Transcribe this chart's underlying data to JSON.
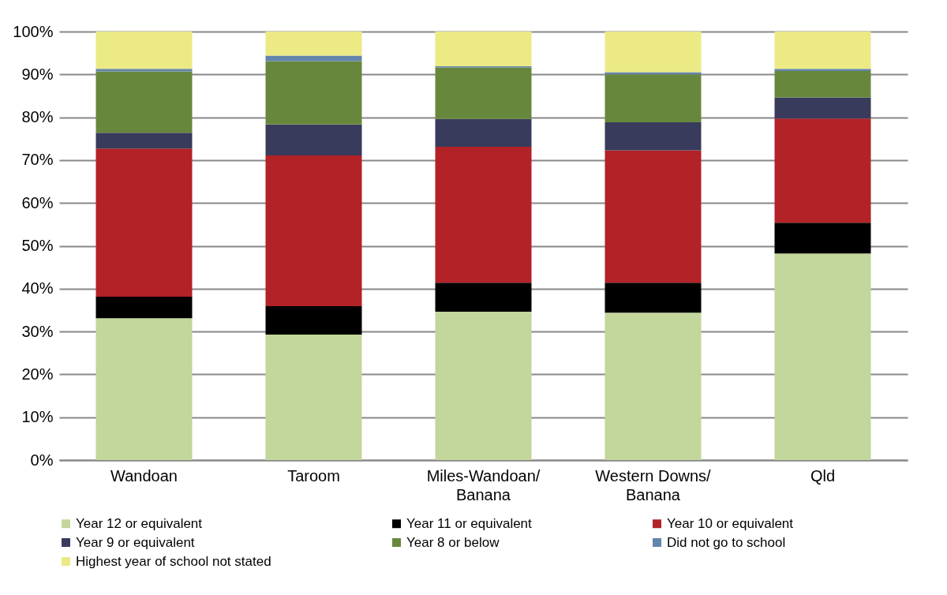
{
  "chart_data": {
    "type": "bar",
    "stacked": true,
    "categories": [
      "Wandoan",
      "Taroom",
      "Miles-Wandoan/\nBanana",
      "Western Downs/\nBanana",
      "Qld"
    ],
    "series": [
      {
        "name": "Year 12 or equivalent",
        "color": "#c3d69b",
        "values": [
          33.1,
          29.3,
          34.6,
          34.4,
          48.2
        ]
      },
      {
        "name": "Year 11 or equivalent",
        "color": "#000000",
        "values": [
          5.0,
          6.6,
          6.8,
          7.0,
          7.2
        ]
      },
      {
        "name": "Year 10 or equivalent",
        "color": "#b22227",
        "values": [
          34.6,
          35.2,
          31.7,
          30.9,
          24.3
        ]
      },
      {
        "name": "Year 9 or equivalent",
        "color": "#383b5b",
        "values": [
          3.7,
          7.2,
          6.5,
          6.5,
          4.9
        ]
      },
      {
        "name": "Year 8 or below",
        "color": "#67883c",
        "values": [
          14.3,
          14.8,
          12.0,
          11.2,
          6.2
        ]
      },
      {
        "name": "Did not go to school",
        "color": "#6384ab",
        "values": [
          0.6,
          1.3,
          0.3,
          0.5,
          0.5
        ]
      },
      {
        "name": "Highest year of school not stated",
        "color": "#ebea85",
        "values": [
          8.7,
          5.6,
          8.1,
          9.5,
          8.7
        ]
      }
    ],
    "ylim": [
      0,
      100
    ],
    "yticks": [
      {
        "value": 0,
        "label": "0%"
      },
      {
        "value": 10,
        "label": "10%"
      },
      {
        "value": 20,
        "label": "20%"
      },
      {
        "value": 30,
        "label": "30%"
      },
      {
        "value": 40,
        "label": "40%"
      },
      {
        "value": 50,
        "label": "50%"
      },
      {
        "value": 60,
        "label": "60%"
      },
      {
        "value": 70,
        "label": "70%"
      },
      {
        "value": 80,
        "label": "80%"
      },
      {
        "value": 90,
        "label": "90%"
      },
      {
        "value": 100,
        "label": "100%"
      }
    ],
    "grid": "y",
    "legend": "bottom"
  }
}
